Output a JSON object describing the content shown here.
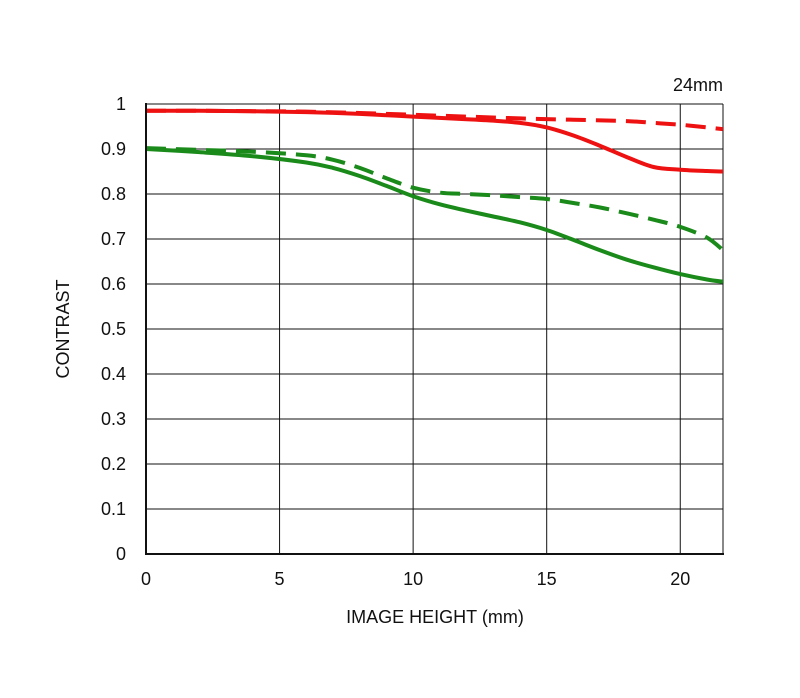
{
  "chart_data": {
    "type": "line",
    "corner_label": "24mm",
    "xlabel": "IMAGE HEIGHT (mm)",
    "ylabel": "CONTRAST",
    "xlim": [
      0,
      21.6
    ],
    "ylim": [
      0,
      1
    ],
    "xticks": [
      0,
      5,
      10,
      15,
      20
    ],
    "xtick_labels": [
      "0",
      "5",
      "10",
      "15",
      "20"
    ],
    "yticks": [
      0,
      0.1,
      0.2,
      0.3,
      0.4,
      0.5,
      0.6,
      0.7,
      0.8,
      0.9,
      1
    ],
    "ytick_labels": [
      "0",
      "0.1",
      "0.2",
      "0.3",
      "0.4",
      "0.5",
      "0.6",
      "0.7",
      "0.8",
      "0.9",
      "1"
    ],
    "grid": true,
    "colors": {
      "red": "#ee1111",
      "green": "#1a8a1a",
      "axis": "#111111",
      "grid": "#111111"
    },
    "series": [
      {
        "color": "#ee1111",
        "dash": false,
        "x": [
          0,
          2,
          4,
          6,
          8,
          10,
          12,
          13,
          14,
          15,
          16,
          17,
          18,
          19,
          20,
          21,
          21.6
        ],
        "y": [
          0.985,
          0.985,
          0.984,
          0.982,
          0.978,
          0.972,
          0.966,
          0.963,
          0.958,
          0.948,
          0.93,
          0.907,
          0.882,
          0.86,
          0.854,
          0.851,
          0.85
        ]
      },
      {
        "color": "#ee1111",
        "dash": true,
        "x": [
          0,
          2,
          4,
          6,
          8,
          10,
          12,
          14,
          16,
          18,
          19,
          20,
          21,
          21.6
        ],
        "y": [
          0.985,
          0.985,
          0.984,
          0.983,
          0.98,
          0.976,
          0.972,
          0.968,
          0.965,
          0.962,
          0.958,
          0.954,
          0.948,
          0.944
        ]
      },
      {
        "color": "#1a8a1a",
        "dash": false,
        "x": [
          0,
          2,
          4,
          6,
          7,
          8,
          9,
          10,
          11,
          12,
          13,
          14,
          15,
          16,
          17,
          18,
          19,
          20,
          21,
          21.6
        ],
        "y": [
          0.9,
          0.893,
          0.884,
          0.87,
          0.858,
          0.84,
          0.818,
          0.795,
          0.777,
          0.763,
          0.75,
          0.737,
          0.72,
          0.698,
          0.675,
          0.654,
          0.637,
          0.622,
          0.61,
          0.605
        ]
      },
      {
        "color": "#1a8a1a",
        "dash": true,
        "x": [
          0,
          2,
          4,
          6,
          7,
          8,
          9,
          10,
          11,
          12,
          13,
          14,
          15,
          16,
          17,
          18,
          19,
          20,
          21,
          21.6
        ],
        "y": [
          0.902,
          0.898,
          0.894,
          0.886,
          0.876,
          0.858,
          0.835,
          0.814,
          0.803,
          0.8,
          0.797,
          0.793,
          0.789,
          0.78,
          0.77,
          0.757,
          0.743,
          0.727,
          0.703,
          0.675
        ]
      }
    ]
  }
}
